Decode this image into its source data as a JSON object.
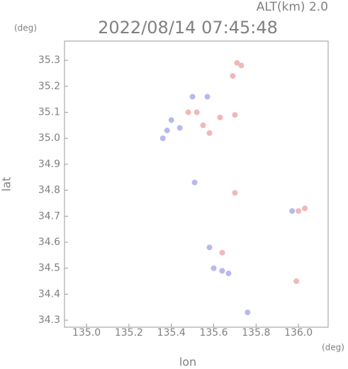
{
  "chart_data": {
    "type": "scatter",
    "title": "2022/08/14 07:45:48",
    "subtitle": "ALT(km) 2.0",
    "y_unit": "(deg)",
    "x_unit": "(deg)",
    "x_label": "lon",
    "y_label": "lat",
    "xlim": [
      134.896,
      136.14
    ],
    "ylim": [
      34.273,
      35.374
    ],
    "xticks": [
      {
        "value": 135,
        "label": "135.0"
      },
      135.2,
      135.4,
      135.6,
      135.8,
      {
        "value": 136,
        "label": "136.0"
      }
    ],
    "yticks": [
      34.3,
      34.4,
      34.5,
      34.6,
      34.7,
      34.8,
      34.9,
      {
        "value": 35,
        "label": "35.0"
      },
      35.1,
      35.2,
      35.3
    ],
    "series": [
      {
        "color": "#b8b8f0",
        "x": [
          135.38,
          135.36,
          135.4,
          135.44,
          135.5,
          135.57,
          135.51,
          135.58,
          135.6,
          135.64,
          135.67,
          135.76,
          135.97
        ],
        "values": [
          35.03,
          35.0,
          35.07,
          35.04,
          35.16,
          35.16,
          34.83,
          34.58,
          34.5,
          34.49,
          34.48,
          34.33,
          34.72
        ]
      },
      {
        "color": "#f0b8b8",
        "x": [
          135.71,
          135.73,
          135.69,
          135.52,
          135.63,
          135.7,
          135.58,
          135.55,
          135.7,
          136.0,
          136.03,
          135.64,
          135.99,
          135.48
        ],
        "values": [
          35.29,
          35.28,
          35.24,
          35.1,
          35.08,
          35.09,
          35.02,
          35.05,
          34.79,
          34.72,
          34.73,
          34.56,
          34.45,
          35.1
        ]
      }
    ]
  }
}
